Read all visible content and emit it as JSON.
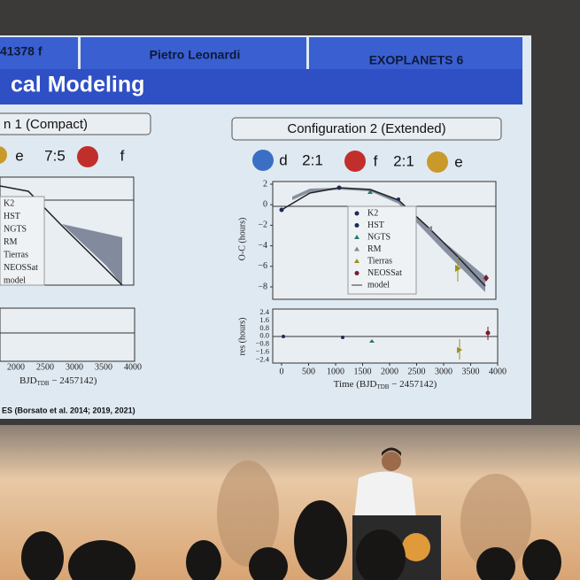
{
  "slide": {
    "header": [
      "41378 f",
      "Pietro Leonardi",
      "EXOPLANETS 6"
    ],
    "title": "cal Modeling",
    "left": {
      "config": "n 1 (Compact)",
      "planets": [
        "e",
        "7:5",
        "f"
      ],
      "legend": [
        "K2",
        "HST",
        "NGTS",
        "RM",
        "Tierras",
        "NEOSSat",
        "model"
      ],
      "xticks": [
        "2000",
        "2500",
        "3000",
        "3500",
        "4000"
      ],
      "xlabel": [
        "BJD",
        "TDB",
        " − 2457142)"
      ]
    },
    "right": {
      "config": "Configuration 2 (Extended)",
      "planets": [
        "d",
        "2:1",
        "f",
        "2:1",
        "e"
      ],
      "legend": [
        "K2",
        "HST",
        "NGTS",
        "RM",
        "Tierras",
        "NEOSSat",
        "model"
      ],
      "yticks": [
        "2",
        "0",
        "−2",
        "−4",
        "−6",
        "−8"
      ],
      "ylabel": "O-C (hours)",
      "res_yticks": [
        "2.4",
        "1.6",
        "0.8",
        "0.0",
        "−0.8",
        "−1.6",
        "−2.4"
      ],
      "res_ylabel": "res (hours)",
      "xticks": [
        "0",
        "500",
        "1000",
        "1500",
        "2000",
        "2500",
        "3000",
        "3500",
        "4000"
      ],
      "xlabel": [
        "Time (BJD",
        "TDB",
        " − 2457142)"
      ]
    },
    "citation": "ES (Borsato et al. 2014; 2019, 2021)"
  }
}
